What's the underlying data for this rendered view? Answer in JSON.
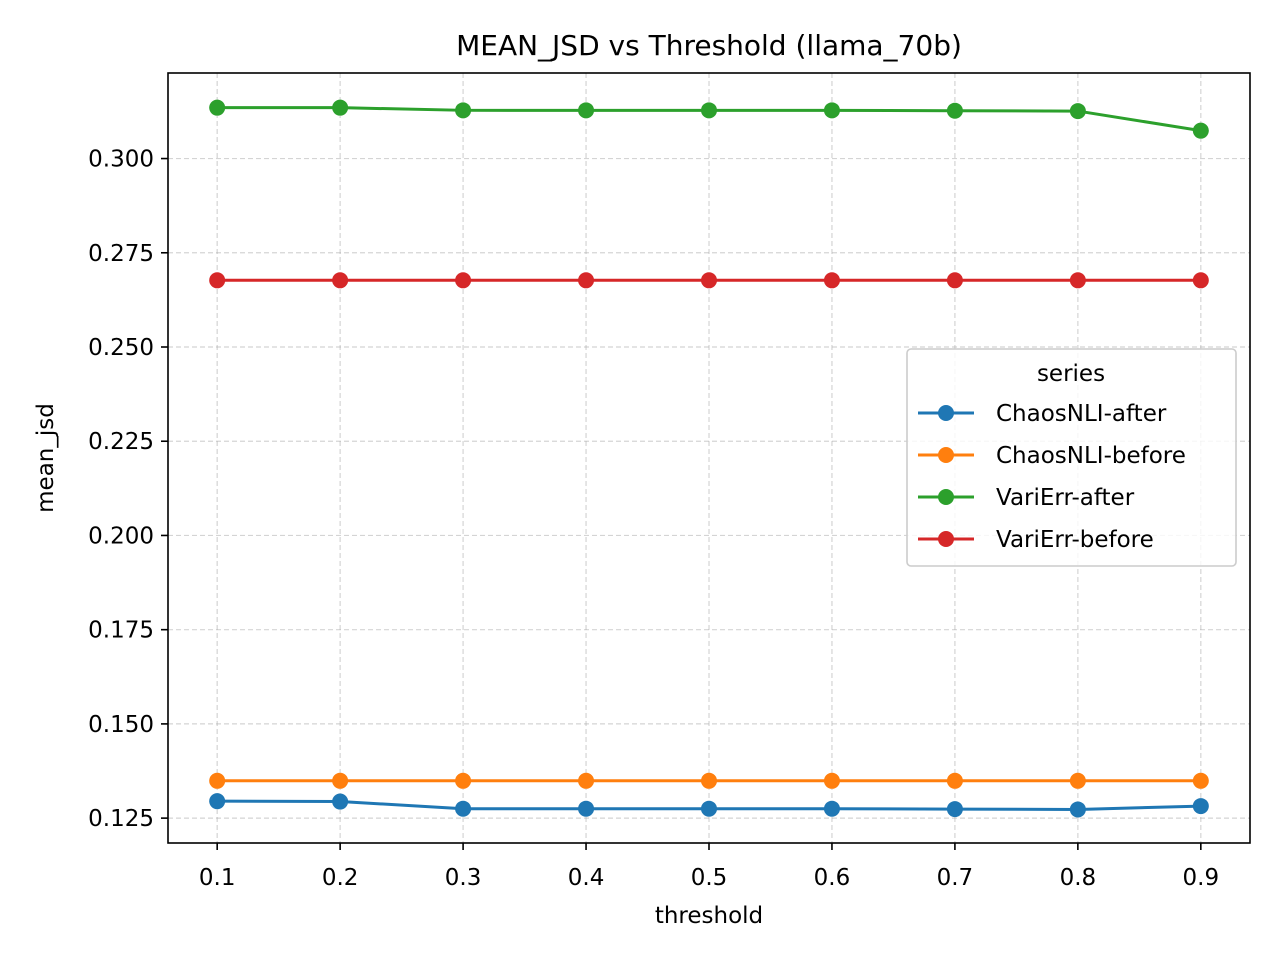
{
  "chart_data": {
    "type": "line",
    "title": "MEAN_JSD vs Threshold (llama_70b)",
    "xlabel": "threshold",
    "ylabel": "mean_jsd",
    "x": [
      0.1,
      0.2,
      0.3,
      0.4,
      0.5,
      0.6,
      0.7,
      0.8,
      0.9
    ],
    "x_tick_labels": [
      "0.1",
      "0.2",
      "0.3",
      "0.4",
      "0.5",
      "0.6",
      "0.7",
      "0.8",
      "0.9"
    ],
    "y_ticks": [
      0.125,
      0.15,
      0.175,
      0.2,
      0.225,
      0.25,
      0.275,
      0.3
    ],
    "y_tick_labels": [
      "0.125",
      "0.150",
      "0.175",
      "0.200",
      "0.225",
      "0.250",
      "0.275",
      "0.300"
    ],
    "xlim": [
      0.06,
      0.94
    ],
    "ylim": [
      0.1184,
      0.3227
    ],
    "grid": true,
    "legend": {
      "title": "series",
      "placement": "center-right"
    },
    "series": [
      {
        "name": "ChaosNLI-after",
        "color": "#1f77b4",
        "values": [
          0.1295,
          0.1294,
          0.1275,
          0.1275,
          0.1275,
          0.1275,
          0.1274,
          0.1273,
          0.1282
        ]
      },
      {
        "name": "ChaosNLI-before",
        "color": "#ff7f0e",
        "values": [
          0.1349,
          0.1349,
          0.1349,
          0.1349,
          0.1349,
          0.1349,
          0.1349,
          0.1349,
          0.1349
        ]
      },
      {
        "name": "VariErr-after",
        "color": "#2ca02c",
        "values": [
          0.3135,
          0.3135,
          0.3128,
          0.3128,
          0.3128,
          0.3128,
          0.3127,
          0.3126,
          0.3074
        ]
      },
      {
        "name": "VariErr-before",
        "color": "#d62728",
        "values": [
          0.2677,
          0.2677,
          0.2677,
          0.2677,
          0.2677,
          0.2677,
          0.2677,
          0.2677,
          0.2677
        ]
      }
    ]
  }
}
